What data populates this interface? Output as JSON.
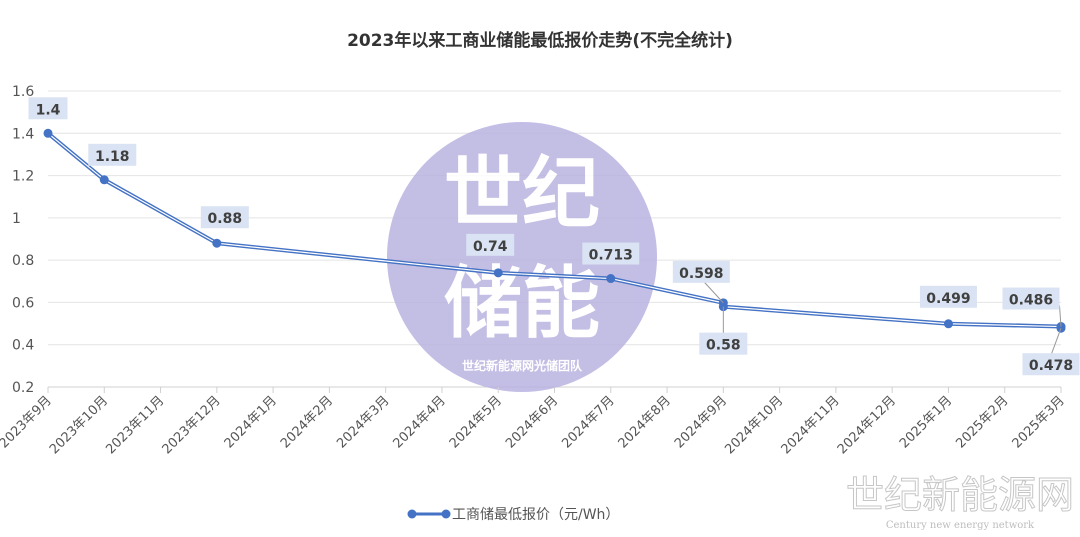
{
  "chart_data": {
    "type": "line",
    "title": "2023年以来工商业储能最低报价走势(不完全统计)",
    "xlabel": "",
    "ylabel": "",
    "ylim": [
      0.2,
      1.6
    ],
    "yticks": [
      "0.2",
      "0.4",
      "0.6",
      "0.8",
      "1",
      "1.2",
      "1.4",
      "1.6"
    ],
    "grid": true,
    "legend_position": "bottom",
    "categories": [
      "2023年9月",
      "2023年10月",
      "2023年11月",
      "2023年12月",
      "2024年1月",
      "2024年2月",
      "2024年3月",
      "2024年4月",
      "2024年5月",
      "2024年6月",
      "2024年7月",
      "2024年8月",
      "2024年9月",
      "2024年10月",
      "2024年11月",
      "2024年12月",
      "2025年1月",
      "2025年2月",
      "2025年3月"
    ],
    "series": [
      {
        "name": "工商储最低报价（元/Wh）",
        "color": "#4472c4",
        "points": [
          {
            "x": "2023年9月",
            "y": 1.4,
            "label": "1.4"
          },
          {
            "x": "2023年10月",
            "y": 1.18,
            "label": "1.18"
          },
          {
            "x": "2023年12月",
            "y": 0.88,
            "label": "0.88"
          },
          {
            "x": "2024年5月",
            "y": 0.74,
            "label": "0.74"
          },
          {
            "x": "2024年7月",
            "y": 0.713,
            "label": "0.713"
          },
          {
            "x": "2024年9月",
            "y": 0.598,
            "label": "0.598"
          },
          {
            "x": "2024年9月",
            "y": 0.58,
            "label": "0.58"
          },
          {
            "x": "2025年1月",
            "y": 0.499,
            "label": "0.499"
          },
          {
            "x": "2025年3月",
            "y": 0.486,
            "label": "0.486"
          },
          {
            "x": "2025年3月",
            "y": 0.478,
            "label": "0.478"
          }
        ]
      }
    ]
  },
  "watermark": {
    "main_line1": "世纪",
    "main_line2": "储能",
    "sub": "世纪新能源网光储团队",
    "corner": "世纪新能源网",
    "corner_en": "Century new energy network"
  }
}
